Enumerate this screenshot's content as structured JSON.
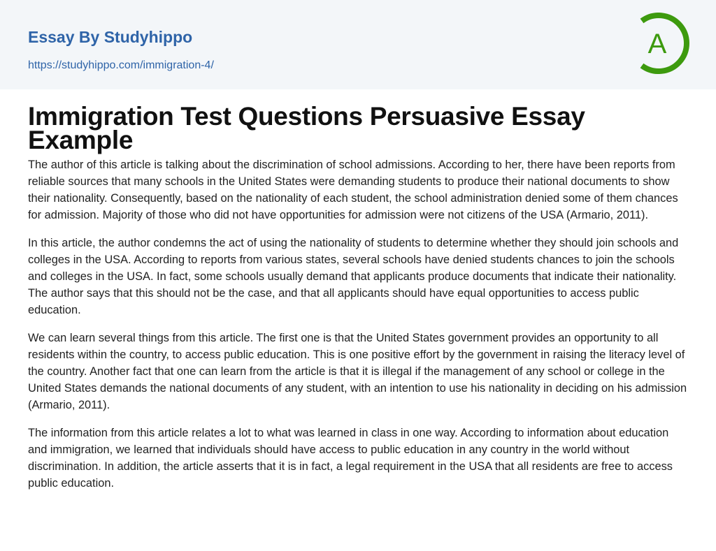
{
  "header": {
    "brand": "Essay By Studyhippo",
    "url": "https://studyhippo.com/immigration-4/",
    "logo_letter": "A",
    "logo_color": "#3d9a0e",
    "brand_color": "#2f64a8"
  },
  "article": {
    "title": "Immigration Test Questions Persuasive Essay Example",
    "paragraphs": [
      "The author of this article is talking about the discrimination of school admissions. According to her, there have been reports from reliable sources that many schools in the United States were demanding students to produce their national documents to show their nationality. Consequently, based on the nationality of each student, the school administration denied some of them chances for admission. Majority of those who did not have opportunities for admission were not citizens of the USA (Armario, 2011).",
      "In this article, the author condemns the act of using the nationality of students to determine whether they should join schools and colleges in the USA. According to reports from various states, several schools have denied students chances to join the schools and colleges in the USA. In fact, some schools usually demand that applicants produce documents that indicate their nationality. The author says that this should not be the case, and that all applicants should have equal opportunities to access public education.",
      "We can learn several things from this article. The first one is that the United States government provides an opportunity to all residents within the country, to access public education. This is one positive effort by the government in raising the literacy level of the country. Another fact that one can learn from the article is that it is illegal if the management of any school or college in the United States demands the national documents of any student, with an intention to use his nationality in deciding on his admission (Armario, 2011).",
      "The information from this article relates a lot to what was learned in class in one way. According to information about education and immigration, we learned that individuals should have access to public education in any country in the world without discrimination. In addition, the article asserts that it is in fact, a legal requirement in the USA that all residents are free to access public education."
    ]
  }
}
